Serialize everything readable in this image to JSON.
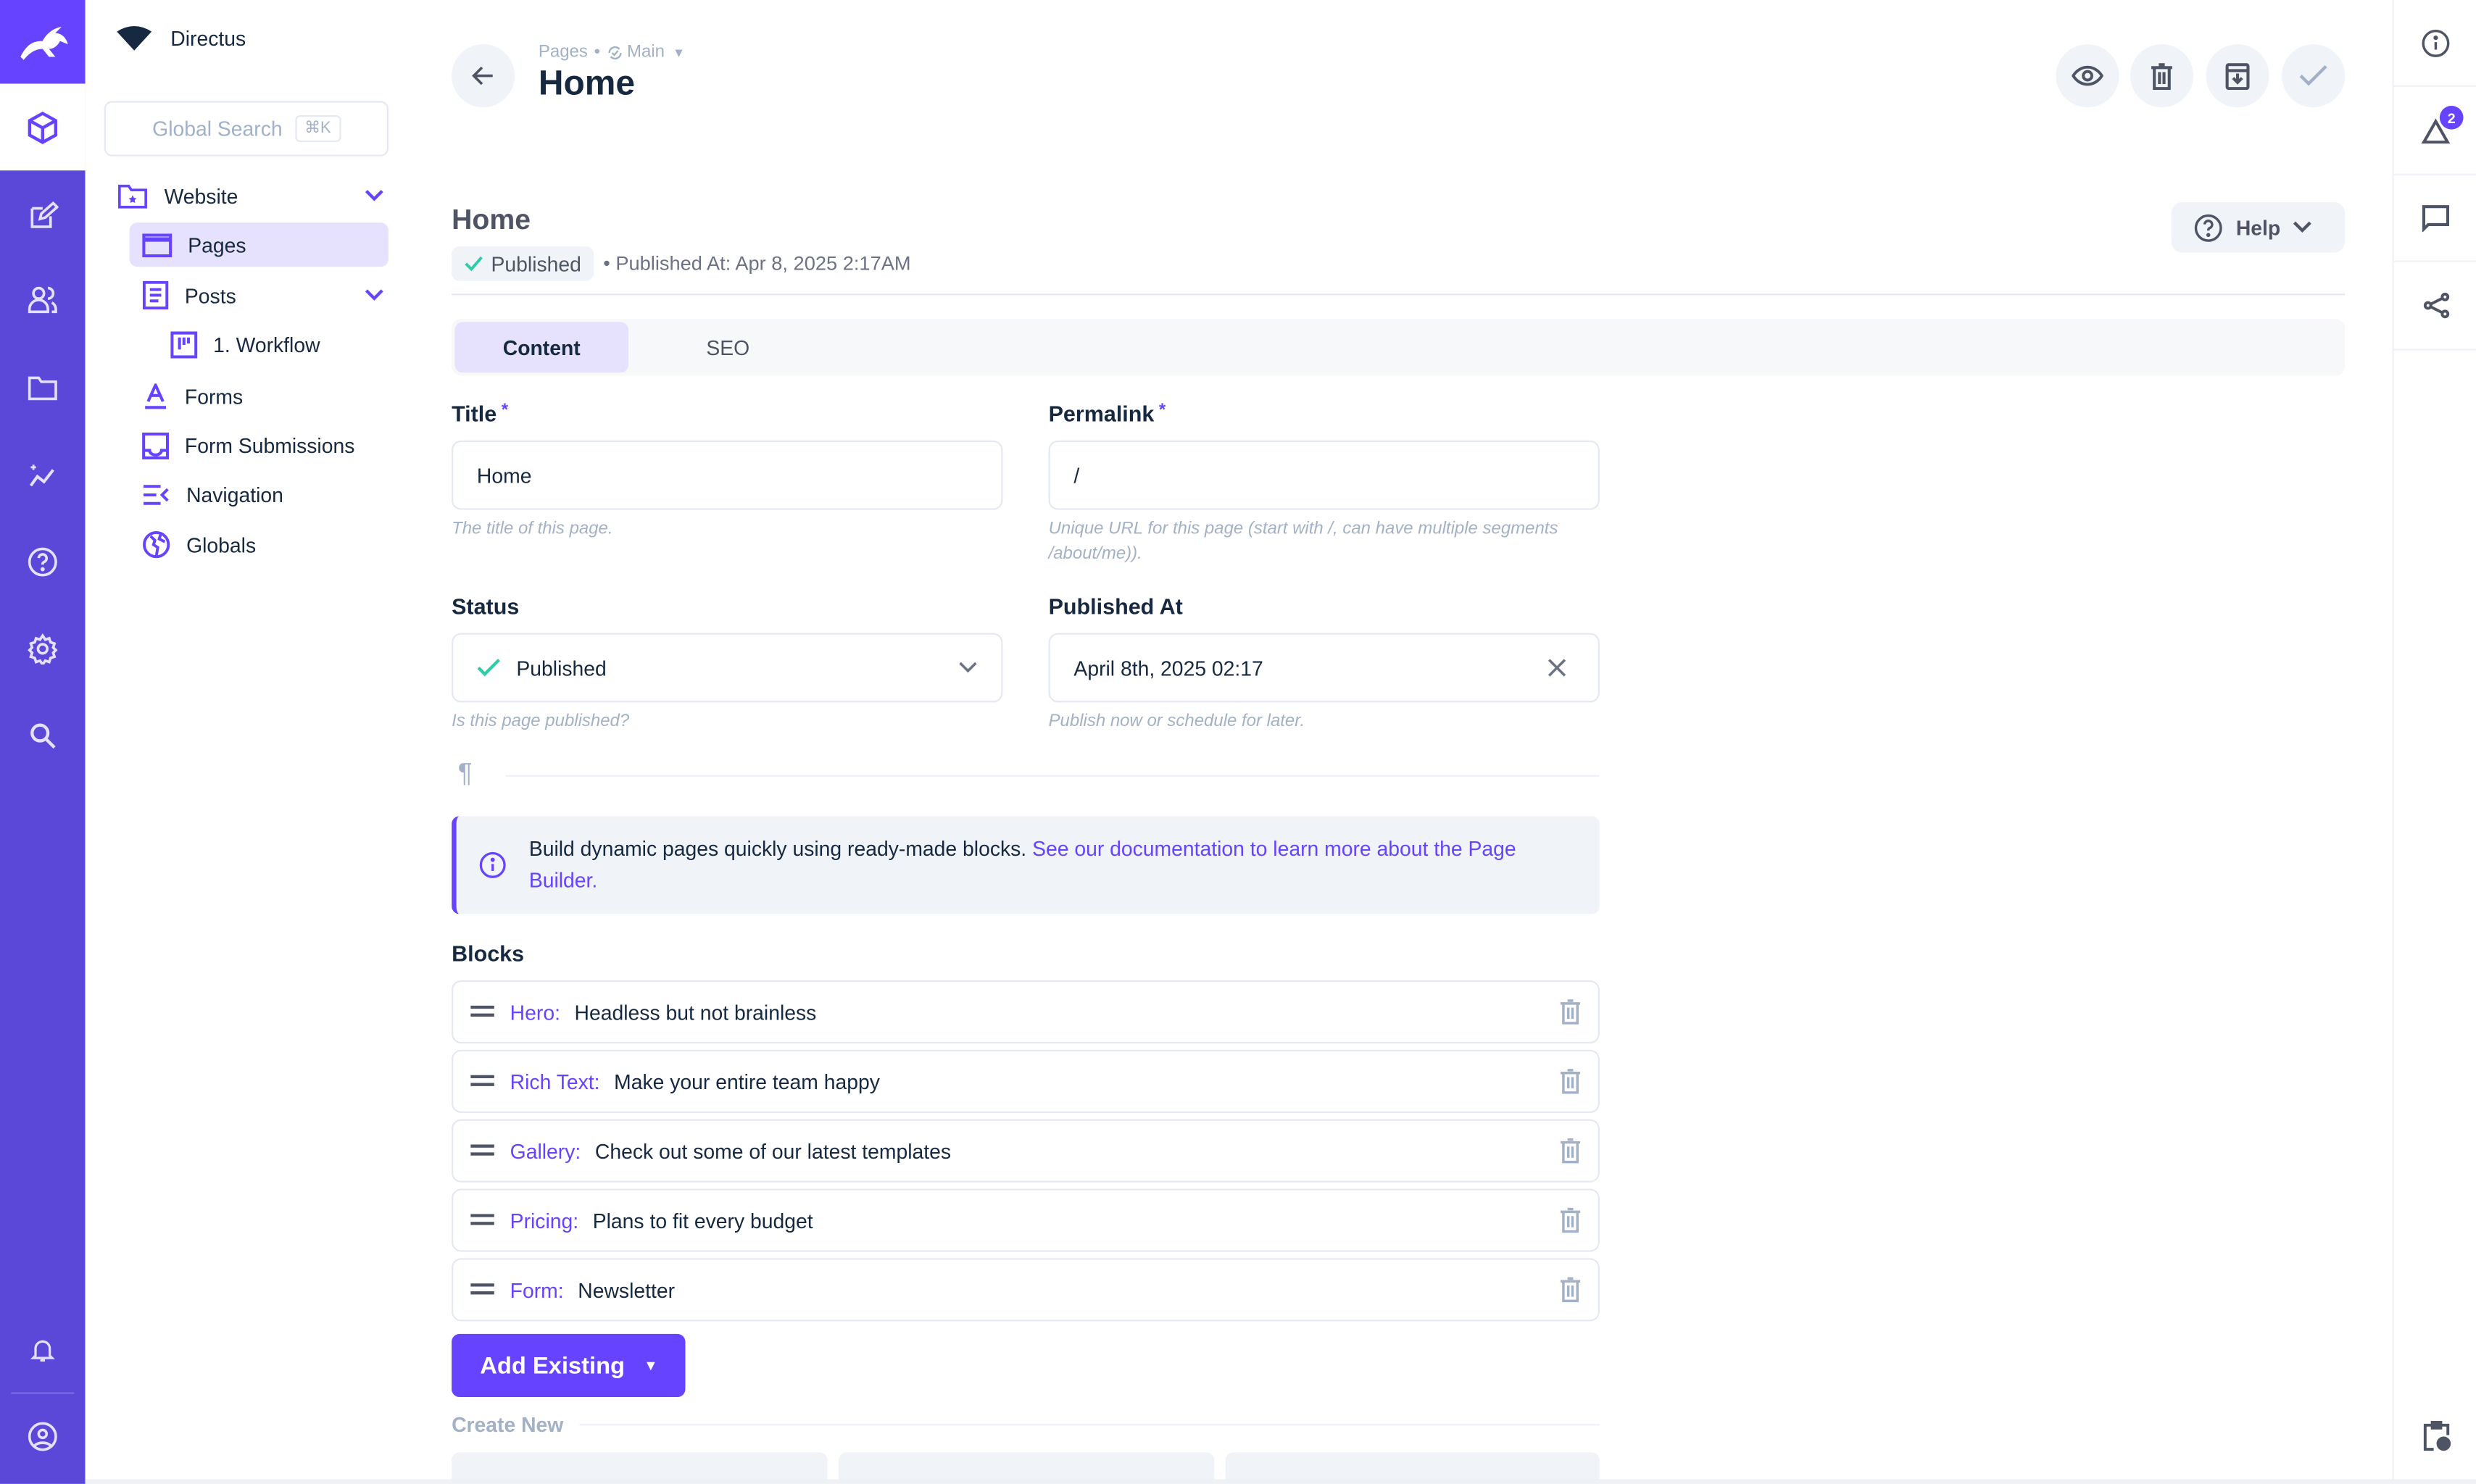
{
  "app": {
    "project_name": "Directus",
    "brand_color": "#6644ff"
  },
  "rail": {
    "icons": [
      "content-cube-icon",
      "edit-icon",
      "users-icon",
      "folder-icon",
      "insights-icon",
      "help-icon",
      "settings-icon",
      "search-icon",
      "bell-icon",
      "user-icon"
    ]
  },
  "nav": {
    "search_placeholder": "Global Search",
    "search_shortcut": "⌘K",
    "items": [
      {
        "label": "Website",
        "icon": "folder-star-icon"
      },
      {
        "label": "Pages",
        "icon": "browser-icon",
        "active": true
      },
      {
        "label": "Posts",
        "icon": "article-icon"
      },
      {
        "label": "1. Workflow",
        "icon": "kanban-icon"
      },
      {
        "label": "Forms",
        "icon": "text-format-icon"
      },
      {
        "label": "Form Submissions",
        "icon": "inbox-icon"
      },
      {
        "label": "Navigation",
        "icon": "menu-open-icon"
      },
      {
        "label": "Globals",
        "icon": "globe-icon"
      }
    ]
  },
  "header": {
    "breadcrumb": "Pages",
    "version": "Main",
    "title": "Home"
  },
  "item": {
    "title": "Home",
    "status_badge": "Published",
    "published_meta": "• Published At: Apr 8, 2025 2:17AM",
    "help_label": "Help"
  },
  "tabs": [
    {
      "label": "Content",
      "active": true
    },
    {
      "label": "SEO"
    }
  ],
  "fields": {
    "title": {
      "label": "Title",
      "value": "Home",
      "hint": "The title of this page."
    },
    "permalink": {
      "label": "Permalink",
      "value": "/",
      "hint": "Unique URL for this page (start with /, can have multiple segments /about/me))."
    },
    "status": {
      "label": "Status",
      "value": "Published",
      "hint": "Is this page published?"
    },
    "published_at": {
      "label": "Published At",
      "value": "April 8th, 2025 02:17",
      "hint": "Publish now or schedule for later."
    }
  },
  "notice": {
    "text": "Build dynamic pages quickly using ready-made blocks. ",
    "link": "See our documentation to learn more about the Page Builder."
  },
  "blocks": {
    "label": "Blocks",
    "items": [
      {
        "type": "Hero:",
        "title": "Headless but not brainless"
      },
      {
        "type": "Rich Text:",
        "title": "Make your entire team happy"
      },
      {
        "type": "Gallery:",
        "title": "Check out some of our latest templates"
      },
      {
        "type": "Pricing:",
        "title": "Plans to fit every budget"
      },
      {
        "type": "Form:",
        "title": "Newsletter"
      }
    ],
    "add_existing": "Add Existing",
    "create_new": "Create New"
  },
  "sidebar_right": {
    "activity_badge": "2"
  }
}
